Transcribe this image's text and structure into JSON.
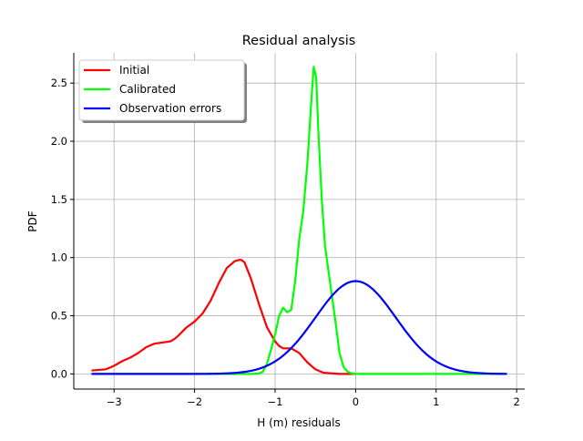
{
  "chart_data": {
    "type": "line",
    "title": "Residual analysis",
    "xlabel": "H (m) residuals",
    "ylabel": "PDF",
    "xlim": [
      -3.5,
      2.1
    ],
    "ylim": [
      -0.13,
      2.76
    ],
    "grid": true,
    "legend_position": "top-left",
    "x_ticks": [
      -3,
      -2,
      -1,
      0,
      1,
      2
    ],
    "x_tick_labels": [
      "−3",
      "−2",
      "−1",
      "0",
      "1",
      "2"
    ],
    "y_ticks": [
      0.0,
      0.5,
      1.0,
      1.5,
      2.0,
      2.5
    ],
    "y_tick_labels": [
      "0.0",
      "0.5",
      "1.0",
      "1.5",
      "2.0",
      "2.5"
    ],
    "series": [
      {
        "name": "Initial",
        "color": "#ff0000",
        "x": [
          -3.27,
          -3.1,
          -3.0,
          -2.9,
          -2.8,
          -2.7,
          -2.6,
          -2.5,
          -2.4,
          -2.3,
          -2.25,
          -2.2,
          -2.1,
          -2.0,
          -1.9,
          -1.8,
          -1.7,
          -1.6,
          -1.5,
          -1.45,
          -1.42,
          -1.38,
          -1.3,
          -1.2,
          -1.1,
          -1.0,
          -0.95,
          -0.9,
          -0.85,
          -0.8,
          -0.7,
          -0.6,
          -0.5,
          -0.4,
          -0.3,
          -0.2,
          -0.1,
          0.0
        ],
        "y": [
          0.03,
          0.04,
          0.07,
          0.11,
          0.14,
          0.18,
          0.23,
          0.26,
          0.27,
          0.28,
          0.3,
          0.33,
          0.4,
          0.45,
          0.52,
          0.63,
          0.78,
          0.91,
          0.97,
          0.98,
          0.98,
          0.96,
          0.82,
          0.6,
          0.4,
          0.28,
          0.24,
          0.22,
          0.22,
          0.22,
          0.18,
          0.1,
          0.04,
          0.01,
          0.005,
          0.0,
          0.0,
          0.0
        ]
      },
      {
        "name": "Calibrated",
        "color": "#00ff00",
        "x": [
          -3.27,
          -1.3,
          -1.2,
          -1.15,
          -1.1,
          -1.05,
          -1.0,
          -0.95,
          -0.9,
          -0.85,
          -0.8,
          -0.75,
          -0.7,
          -0.65,
          -0.6,
          -0.55,
          -0.52,
          -0.49,
          -0.46,
          -0.42,
          -0.38,
          -0.34,
          -0.3,
          -0.25,
          -0.2,
          -0.15,
          -0.1,
          -0.05,
          0.0,
          0.5,
          1.0,
          1.5,
          1.87
        ],
        "y": [
          0.0,
          0.0,
          0.003,
          0.02,
          0.09,
          0.21,
          0.34,
          0.5,
          0.57,
          0.53,
          0.55,
          0.8,
          1.16,
          1.4,
          1.8,
          2.35,
          2.64,
          2.55,
          2.05,
          1.5,
          1.1,
          0.9,
          0.7,
          0.45,
          0.18,
          0.06,
          0.02,
          0.005,
          0.0,
          0.0,
          0.0,
          0.0,
          0.0
        ]
      },
      {
        "name": "Observation errors",
        "color": "#0000ff",
        "distribution": "normal",
        "mean": 0.0,
        "std": 0.5,
        "x_range": [
          -3.27,
          1.87
        ]
      }
    ]
  }
}
